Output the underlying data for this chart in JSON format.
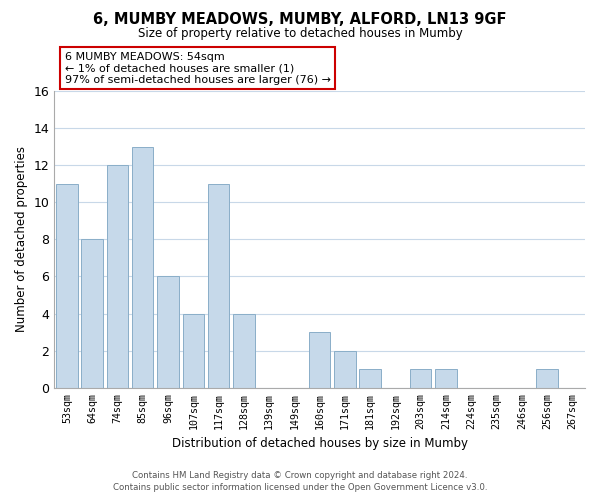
{
  "title": "6, MUMBY MEADOWS, MUMBY, ALFORD, LN13 9GF",
  "subtitle": "Size of property relative to detached houses in Mumby",
  "xlabel": "Distribution of detached houses by size in Mumby",
  "ylabel": "Number of detached properties",
  "categories": [
    "53sqm",
    "64sqm",
    "74sqm",
    "85sqm",
    "96sqm",
    "107sqm",
    "117sqm",
    "128sqm",
    "139sqm",
    "149sqm",
    "160sqm",
    "171sqm",
    "181sqm",
    "192sqm",
    "203sqm",
    "214sqm",
    "224sqm",
    "235sqm",
    "246sqm",
    "256sqm",
    "267sqm"
  ],
  "values": [
    11,
    8,
    12,
    13,
    6,
    4,
    11,
    4,
    0,
    0,
    3,
    2,
    1,
    0,
    1,
    1,
    0,
    0,
    0,
    1,
    0
  ],
  "bar_color": "#c6d9ea",
  "bar_edge_color": "#8aaec8",
  "ylim": [
    0,
    16
  ],
  "yticks": [
    0,
    2,
    4,
    6,
    8,
    10,
    12,
    14,
    16
  ],
  "annotation_text": "6 MUMBY MEADOWS: 54sqm\n← 1% of detached houses are smaller (1)\n97% of semi-detached houses are larger (76) →",
  "annotation_box_color": "#ffffff",
  "annotation_border_color": "#cc0000",
  "footer_line1": "Contains HM Land Registry data © Crown copyright and database right 2024.",
  "footer_line2": "Contains public sector information licensed under the Open Government Licence v3.0.",
  "background_color": "#ffffff",
  "grid_color": "#c8d8e8"
}
